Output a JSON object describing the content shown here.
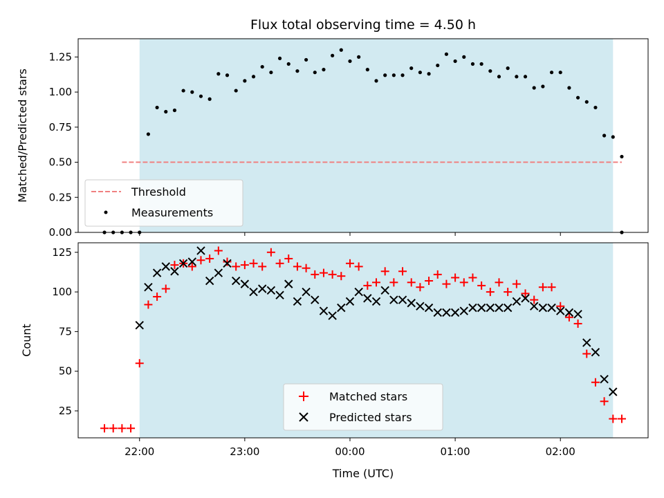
{
  "chart_data": [
    {
      "type": "scatter",
      "title": "Flux total observing time = 4.50 h",
      "xlabel": "",
      "ylabel": "Matched/Predicted stars",
      "ylim": [
        0,
        1.38
      ],
      "xlim": [
        "21:25",
        "02:50"
      ],
      "yticks": [
        "0.00",
        "0.25",
        "0.50",
        "0.75",
        "1.00",
        "1.25"
      ],
      "shaded_region": {
        "from": "22:00",
        "to": "02:30",
        "color": "#add8e6"
      },
      "legend_position": "lower-left",
      "threshold": {
        "name": "Threshold",
        "value": 0.5,
        "from": "21:50",
        "to": "02:35",
        "color": "#f08080"
      },
      "series": [
        {
          "name": "Measurements",
          "color": "#000000",
          "x": [
            "21:50",
            "21:55",
            "22:00",
            "22:05",
            "22:10",
            "22:15",
            "22:20",
            "22:25",
            "22:30",
            "22:35",
            "22:40",
            "22:45",
            "22:50",
            "22:55",
            "23:00",
            "23:05",
            "23:10",
            "23:15",
            "23:20",
            "23:25",
            "23:30",
            "23:35",
            "23:40",
            "23:45",
            "23:50",
            "23:55",
            "00:00",
            "00:05",
            "00:10",
            "00:15",
            "00:20",
            "00:25",
            "00:30",
            "00:35",
            "00:40",
            "00:45",
            "00:50",
            "00:55",
            "01:00",
            "01:05",
            "01:10",
            "01:15",
            "01:20",
            "01:25",
            "01:30",
            "01:35",
            "01:40",
            "01:45",
            "01:50",
            "01:55",
            "02:00",
            "02:05",
            "02:10",
            "02:15",
            "02:20",
            "02:25",
            "02:30",
            "02:35"
          ],
          "y": [
            0,
            0,
            0,
            0.7,
            0.89,
            0.86,
            0.87,
            1.01,
            1.0,
            0.97,
            0.95,
            1.13,
            1.12,
            1.01,
            1.08,
            1.11,
            1.18,
            1.14,
            1.24,
            1.2,
            1.15,
            1.23,
            1.14,
            1.16,
            1.26,
            1.3,
            1.22,
            1.25,
            1.16,
            1.08,
            1.12,
            1.12,
            1.12,
            1.17,
            1.14,
            1.13,
            1.19,
            1.27,
            1.22,
            1.25,
            1.2,
            1.2,
            1.15,
            1.11,
            1.17,
            1.11,
            1.11,
            1.03,
            1.04,
            1.14,
            1.14,
            1.03,
            0.96,
            0.93,
            0.89,
            0.69,
            0.68,
            0.54
          ]
        }
      ],
      "extra_points": {
        "x": [
          "21:40",
          "21:45",
          "02:35"
        ],
        "y": [
          0,
          0,
          0
        ]
      }
    },
    {
      "type": "scatter",
      "title": "",
      "xlabel": "Time (UTC)",
      "ylabel": "Count",
      "ylim": [
        8,
        131
      ],
      "xlim": [
        "21:25",
        "02:50"
      ],
      "yticks": [
        "25",
        "50",
        "75",
        "100",
        "125"
      ],
      "xticks": [
        "22:00",
        "23:00",
        "00:00",
        "01:00",
        "02:00"
      ],
      "shaded_region": {
        "from": "22:00",
        "to": "02:30",
        "color": "#add8e6"
      },
      "legend_position": "lower-center",
      "series": [
        {
          "name": "Matched stars",
          "color": "#ff0000",
          "marker": "+",
          "x": [
            "21:40",
            "21:45",
            "21:50",
            "21:55",
            "22:00",
            "22:05",
            "22:10",
            "22:15",
            "22:20",
            "22:25",
            "22:30",
            "22:35",
            "22:40",
            "22:45",
            "22:50",
            "22:55",
            "23:00",
            "23:05",
            "23:10",
            "23:15",
            "23:20",
            "23:25",
            "23:30",
            "23:35",
            "23:40",
            "23:45",
            "23:50",
            "23:55",
            "00:00",
            "00:05",
            "00:10",
            "00:15",
            "00:20",
            "00:25",
            "00:30",
            "00:35",
            "00:40",
            "00:45",
            "00:50",
            "00:55",
            "01:00",
            "01:05",
            "01:10",
            "01:15",
            "01:20",
            "01:25",
            "01:30",
            "01:35",
            "01:40",
            "01:45",
            "01:50",
            "01:55",
            "02:00",
            "02:05",
            "02:10",
            "02:15",
            "02:20",
            "02:25",
            "02:30",
            "02:35"
          ],
          "y": [
            14,
            14,
            14,
            14,
            55,
            92,
            97,
            102,
            117,
            118,
            116,
            120,
            121,
            126,
            119,
            116,
            117,
            118,
            116,
            125,
            118,
            121,
            116,
            115,
            111,
            112,
            111,
            110,
            118,
            116,
            104,
            106,
            113,
            106,
            113,
            106,
            103,
            107,
            111,
            105,
            109,
            106,
            109,
            104,
            100,
            106,
            100,
            105,
            99,
            95,
            103,
            103,
            91,
            84,
            80,
            61,
            43,
            31,
            20,
            20
          ]
        },
        {
          "name": "Predicted stars",
          "color": "#000000",
          "marker": "x",
          "x": [
            "22:00",
            "22:05",
            "22:10",
            "22:15",
            "22:20",
            "22:25",
            "22:30",
            "22:35",
            "22:40",
            "22:45",
            "22:50",
            "22:55",
            "23:00",
            "23:05",
            "23:10",
            "23:15",
            "23:20",
            "23:25",
            "23:30",
            "23:35",
            "23:40",
            "23:45",
            "23:50",
            "23:55",
            "00:00",
            "00:05",
            "00:10",
            "00:15",
            "00:20",
            "00:25",
            "00:30",
            "00:35",
            "00:40",
            "00:45",
            "00:50",
            "00:55",
            "01:00",
            "01:05",
            "01:10",
            "01:15",
            "01:20",
            "01:25",
            "01:30",
            "01:35",
            "01:40",
            "01:45",
            "01:50",
            "01:55",
            "02:00",
            "02:05",
            "02:10",
            "02:15",
            "02:20",
            "02:25",
            "02:30"
          ],
          "y": [
            79,
            103,
            112,
            116,
            113,
            118,
            119,
            126,
            107,
            112,
            118,
            107,
            105,
            100,
            102,
            101,
            98,
            105,
            94,
            100,
            95,
            88,
            85,
            90,
            94,
            100,
            96,
            94,
            101,
            95,
            95,
            93,
            91,
            90,
            87,
            87,
            87,
            88,
            90,
            90,
            90,
            90,
            90,
            94,
            96,
            91,
            90,
            90,
            88,
            87,
            86,
            68,
            62,
            45,
            37
          ]
        }
      ]
    }
  ]
}
